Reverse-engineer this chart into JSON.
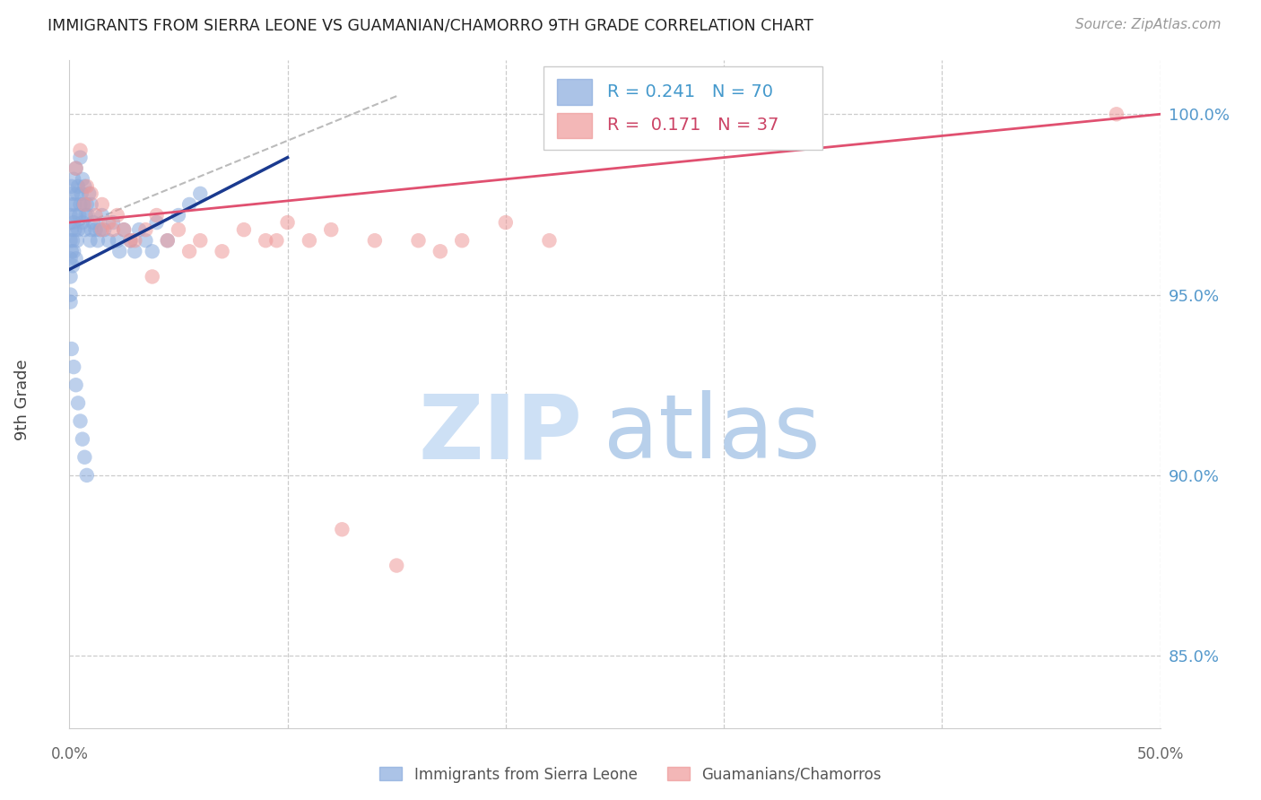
{
  "title": "IMMIGRANTS FROM SIERRA LEONE VS GUAMANIAN/CHAMORRO 9TH GRADE CORRELATION CHART",
  "source": "Source: ZipAtlas.com",
  "ylabel": "9th Grade",
  "legend_blue_r": "0.241",
  "legend_blue_n": "70",
  "legend_pink_r": "0.171",
  "legend_pink_n": "37",
  "blue_color": "#88aadd",
  "pink_color": "#ee9999",
  "blue_line_color": "#1a3a8f",
  "pink_line_color": "#e05070",
  "watermark_zip_color": "#cde0f5",
  "watermark_atlas_color": "#b8d0eb",
  "right_axis_color": "#5599cc",
  "grid_color": "#cccccc",
  "title_color": "#222222",
  "source_color": "#999999",
  "blue_line_x0": 0.0,
  "blue_line_y0": 95.7,
  "blue_line_x1": 10.0,
  "blue_line_y1": 98.8,
  "pink_line_x0": 0.0,
  "pink_line_y0": 97.0,
  "pink_line_x1": 50.0,
  "pink_line_y1": 100.0,
  "ref_line_x0": 0.0,
  "ref_line_y0": 96.8,
  "ref_line_x1": 15.0,
  "ref_line_y1": 100.5,
  "blue_scatter_x": [
    0.05,
    0.05,
    0.05,
    0.05,
    0.05,
    0.05,
    0.1,
    0.1,
    0.1,
    0.1,
    0.15,
    0.15,
    0.15,
    0.2,
    0.2,
    0.2,
    0.25,
    0.25,
    0.3,
    0.3,
    0.3,
    0.35,
    0.35,
    0.4,
    0.4,
    0.45,
    0.5,
    0.5,
    0.55,
    0.6,
    0.6,
    0.65,
    0.7,
    0.7,
    0.75,
    0.8,
    0.85,
    0.9,
    0.95,
    1.0,
    1.0,
    1.1,
    1.2,
    1.3,
    1.4,
    1.5,
    1.6,
    1.8,
    2.0,
    2.2,
    2.3,
    2.5,
    2.8,
    3.0,
    3.2,
    3.5,
    3.8,
    4.0,
    4.5,
    5.0,
    0.1,
    0.2,
    0.3,
    0.4,
    0.5,
    0.6,
    0.7,
    0.8,
    5.5,
    6.0
  ],
  "blue_scatter_y": [
    97.2,
    96.5,
    96.0,
    95.5,
    95.0,
    94.8,
    98.0,
    97.5,
    96.8,
    96.2,
    97.8,
    96.5,
    95.8,
    98.2,
    97.0,
    96.2,
    97.5,
    96.8,
    98.5,
    97.2,
    96.0,
    97.8,
    96.5,
    98.0,
    96.8,
    97.2,
    98.8,
    97.5,
    97.8,
    98.2,
    97.0,
    97.5,
    98.0,
    96.8,
    97.2,
    97.5,
    97.2,
    97.8,
    96.5,
    97.5,
    96.8,
    97.0,
    96.8,
    96.5,
    96.8,
    97.2,
    96.8,
    96.5,
    97.0,
    96.5,
    96.2,
    96.8,
    96.5,
    96.2,
    96.8,
    96.5,
    96.2,
    97.0,
    96.5,
    97.2,
    93.5,
    93.0,
    92.5,
    92.0,
    91.5,
    91.0,
    90.5,
    90.0,
    97.5,
    97.8
  ],
  "pink_scatter_x": [
    0.3,
    0.5,
    0.7,
    0.8,
    1.0,
    1.2,
    1.5,
    1.8,
    2.0,
    2.2,
    2.5,
    3.0,
    3.5,
    4.0,
    4.5,
    5.0,
    6.0,
    7.0,
    8.0,
    9.0,
    10.0,
    11.0,
    12.0,
    14.0,
    15.0,
    16.0,
    17.0,
    18.0,
    20.0,
    22.0,
    1.5,
    2.8,
    3.8,
    5.5,
    9.5,
    48.0,
    12.5
  ],
  "pink_scatter_y": [
    98.5,
    99.0,
    97.5,
    98.0,
    97.8,
    97.2,
    97.5,
    97.0,
    96.8,
    97.2,
    96.8,
    96.5,
    96.8,
    97.2,
    96.5,
    96.8,
    96.5,
    96.2,
    96.8,
    96.5,
    97.0,
    96.5,
    96.8,
    96.5,
    87.5,
    96.5,
    96.2,
    96.5,
    97.0,
    96.5,
    96.8,
    96.5,
    95.5,
    96.2,
    96.5,
    100.0,
    88.5
  ],
  "xlim": [
    0,
    50
  ],
  "ylim": [
    83.0,
    101.5
  ]
}
